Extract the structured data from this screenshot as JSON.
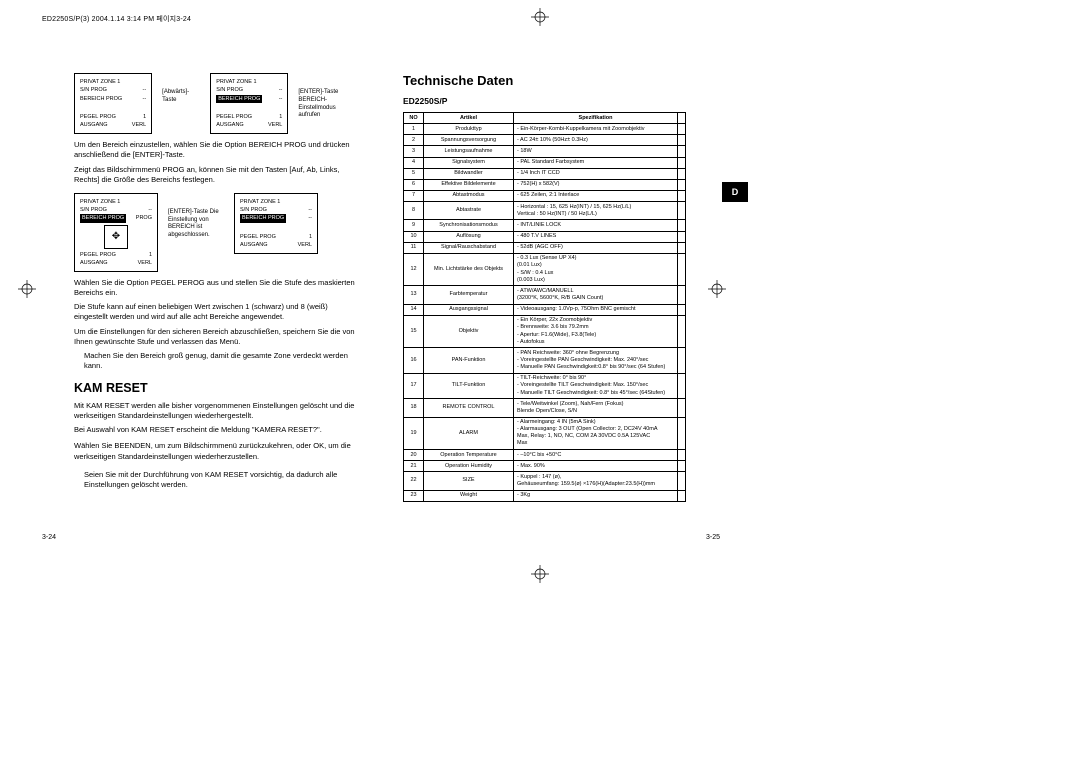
{
  "header": "ED2250S/P(3)  2004.1.14  3:14 PM  페이지3-24",
  "lang_tab": "D",
  "left": {
    "pagenum": "3-24",
    "osd1": {
      "title": "PRIVAT ZONE 1",
      "r1l": "S/N PROG",
      "r1r": "--",
      "r2l": "BEREICH PROG",
      "r2r": "--",
      "r3l": "PEGEL PROG",
      "r3r": "1",
      "r4l": "AUSGANG",
      "r4r": "VERL"
    },
    "osd2": {
      "title": "PRIVAT ZONE 1",
      "r1l": "S/N PROG",
      "r1r": "--",
      "r2l": "BEREICH PROG",
      "r2r": "--",
      "r3l": "PEGEL PROG",
      "r3r": "1",
      "r4l": "AUSGANG",
      "r4r": "VERL"
    },
    "label1": "[Abwärts]-Taste",
    "label2": "[ENTER]-Taste BEREICH-Einstellmodus aufrufen",
    "para1": "Um den Bereich einzustellen, wählen Sie die Option BEREICH PROG und drücken anschließend die [ENTER]-Taste.",
    "para2": "Zeigt das Bildschirmmenü PROG an, können Sie mit den Tasten [Auf, Ab, Links, Rechts] die Größe des Bereichs festlegen.",
    "osd3": {
      "title": "PRIVAT ZONE 1",
      "r1l": "S/N PROG",
      "r1r": "--",
      "r2l": "BEREICH PROG",
      "r2r": "PROG",
      "r3l": "PEGEL PROG",
      "r3r": "1",
      "r4l": "AUSGANG",
      "r4r": "VERL"
    },
    "osd4": {
      "title": "PRIVAT ZONE 1",
      "r1l": "S/N PROG",
      "r1r": "--",
      "r2l": "BEREICH PROG",
      "r2r": "--",
      "r3l": "PEGEL PROG",
      "r3r": "1",
      "r4l": "AUSGANG",
      "r4r": "VERL"
    },
    "label3": "[ENTER]-Taste Die Einstellung von BEREICH ist abgeschlossen.",
    "para3": "Wählen Sie die Option PEGEL PEROG aus und stellen Sie die Stufe des maskierten Bereichs ein.",
    "para4": "Die Stufe kann auf einen beliebigen Wert zwischen 1 (schwarz) und 8 (weiß) eingestellt werden und wird auf alle acht Bereiche angewendet.",
    "para5": "Um die Einstellungen für den sicheren Bereich abzuschließen, speichern Sie die von Ihnen gewünschte Stufe und verlassen das Menü.",
    "para6": "Machen Sie den Bereich groß genug, damit die gesamte Zone verdeckt werden kann.",
    "kam_title": "KAM RESET",
    "kam1": "Mit KAM RESET werden alle bisher vorgenommenen Einstellungen gelöscht und die werkseitigen Standardeinstellungen wiederhergestellt.",
    "kam2": "Bei Auswahl von KAM RESET erscheint die Meldung \"KAMERA RESET?\".",
    "kam3": "Wählen Sie BEENDEN, um zum Bildschirmmenü zurückzukehren, oder OK, um die werkseitigen Standardeinstellungen wiederherzustellen.",
    "kam4": "Seien Sie mit der Durchführung von KAM RESET vorsichtig, da dadurch alle Einstellungen gelöscht werden."
  },
  "right": {
    "pagenum": "3-25",
    "title": "Technische Daten",
    "model": "ED2250S/P",
    "th_no": "NO",
    "th_art": "Artikel",
    "th_spec": "Spezifikation",
    "rows": [
      [
        "1",
        "Produkttyp",
        "- Ein-Körper-Kombi-Kuppelkamera mit Zoomobjektiv"
      ],
      [
        "2",
        "Spannungsversorgung",
        "- AC 24± 10% (50Hz± 0.3Hz)"
      ],
      [
        "3",
        "Leistungsaufnahme",
        "- 18W"
      ],
      [
        "4",
        "Signalsystem",
        "- PAL Standard Farbsystem"
      ],
      [
        "5",
        "Bildwandler",
        "- 1/4 Inch IT CCD"
      ],
      [
        "6",
        "Effektive Bildelemente",
        "- 752(H) x 582(V)"
      ],
      [
        "7",
        "Abtastmodus",
        "- 625 Zeilen, 2:1 Interlace"
      ],
      [
        "8",
        "Abtastrate",
        "- Horizontal : 15, 625 Hz(INT) / 15, 625 Hz(L/L)\n  Vertical     : 50 Hz(INT) / 50 Hz(L/L)"
      ],
      [
        "9",
        "Synchronisationsmodus",
        "- INT/LINIE LOCK"
      ],
      [
        "10",
        "Auflösung",
        "- 480 T.V LINES"
      ],
      [
        "11",
        "Signal/Rauschabstand",
        "- 52dB  (AGC OFF)"
      ],
      [
        "12",
        "Min. Lichtstärke des Objekts",
        "- 0.3 Lux (Sense UP X4)\n                           (0.01 Lux)\n- S/W : 0.4 Lux\n                           (0.003 Lux)"
      ],
      [
        "13",
        "Farbtemperatur",
        "- ATW/AWC/MANUELL\n  (3200°K, 5600°K, R/B GAIN Count)"
      ],
      [
        "14",
        "Ausgangssignal",
        "- Videoausgang: 1.0Vp-p, 75Ohm BNC gemischt"
      ],
      [
        "15",
        "Objektiv",
        "- Ein Körper, 22x Zoomobjektiv\n- Brennweite: 3.6 bis 79.2mm\n- Apertur: F1.6(Wide), F3.8(Tele)\n- Autofokus"
      ],
      [
        "16",
        "PAN-Funktion",
        "- PAN Reichweite: 360° ohne Begrenzung\n- Voreingestellte PAN Geschwindigkeit: Max. 240°/sec\n- Manuelle PAN Geschwindigkeit:0.8° bis 90°/sec (64 Stufen)"
      ],
      [
        "17",
        "TILT-Funktion",
        "- TILT-Reichweite: 0° bis 90°\n- Voreingestellte TILT Geschwindigkeit: Max. 150°/sec\n- Manuelle TILT Geschwindigkeit: 0.8° bis 45°/sec (64Stufen)"
      ],
      [
        "18",
        "REMOTE CONTROL",
        "- Tele/Weitwinkel (Zoom), Nah/Fern (Fokus)\n  Blende Open/Close, S/N"
      ],
      [
        "19",
        "ALARM",
        "- Alarmeingang: 4 IN (5mA Sink)\n- Alarmausgang: 3 OUT (Open Collector: 2, DC24V 40mA\n  Max, Relay: 1, NO, NC, COM 2A 30VDC 0.5A 125VAC\n  Max"
      ],
      [
        "20",
        "Operation Temperature",
        "- –10°C bis +50°C"
      ],
      [
        "21",
        "Operation Humidity",
        "- Max. 90%"
      ],
      [
        "22",
        "SIZE",
        "- Kuppel : 147 (ø),\n  Gehäuseumfang: 159.5(ø) ×176(H)(Adapter:23.5(H))mm"
      ],
      [
        "23",
        "Weight",
        "- 3Kg"
      ]
    ]
  }
}
